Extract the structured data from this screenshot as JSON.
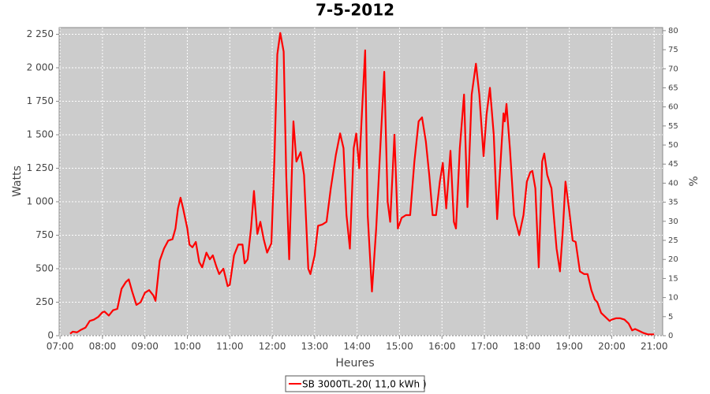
{
  "chart_data": {
    "type": "line",
    "title": "7-5-2012",
    "x_label": "Heures",
    "y_label": "Watts",
    "y2_label": "%",
    "x": [
      7.24,
      7.3,
      7.4,
      7.5,
      7.6,
      7.7,
      7.8,
      7.9,
      8.0,
      8.05,
      8.15,
      8.25,
      8.35,
      8.45,
      8.55,
      8.62,
      8.7,
      8.8,
      8.9,
      9.0,
      9.1,
      9.2,
      9.25,
      9.35,
      9.45,
      9.55,
      9.65,
      9.72,
      9.78,
      9.84,
      9.9,
      10.0,
      10.05,
      10.12,
      10.2,
      10.28,
      10.35,
      10.45,
      10.53,
      10.6,
      10.68,
      10.75,
      10.85,
      10.95,
      11.0,
      11.1,
      11.2,
      11.3,
      11.35,
      11.42,
      11.5,
      11.57,
      11.65,
      11.72,
      11.8,
      11.88,
      11.98,
      12.05,
      12.12,
      12.19,
      12.27,
      12.33,
      12.4,
      12.5,
      12.57,
      12.67,
      12.75,
      12.85,
      12.9,
      13.0,
      13.08,
      13.18,
      13.28,
      13.38,
      13.5,
      13.6,
      13.68,
      13.75,
      13.83,
      13.92,
      13.98,
      14.05,
      14.12,
      14.19,
      14.25,
      14.35,
      14.45,
      14.53,
      14.64,
      14.72,
      14.78,
      14.88,
      14.96,
      15.05,
      15.15,
      15.25,
      15.35,
      15.45,
      15.53,
      15.62,
      15.7,
      15.78,
      15.86,
      15.95,
      16.02,
      16.1,
      16.2,
      16.28,
      16.33,
      16.42,
      16.52,
      16.6,
      16.7,
      16.8,
      16.88,
      16.98,
      17.05,
      17.13,
      17.22,
      17.3,
      17.4,
      17.45,
      17.48,
      17.52,
      17.6,
      17.7,
      17.82,
      17.92,
      18.0,
      18.08,
      18.13,
      18.2,
      18.28,
      18.36,
      18.41,
      18.48,
      18.58,
      18.7,
      18.78,
      18.85,
      18.91,
      19.0,
      19.08,
      19.15,
      19.25,
      19.35,
      19.43,
      19.52,
      19.6,
      19.66,
      19.75,
      19.85,
      19.95,
      20.0,
      20.1,
      20.2,
      20.3,
      20.4,
      20.48,
      20.55,
      20.62,
      20.75,
      20.85,
      21.0
    ],
    "series": [
      {
        "name": "SB 3000TL-20( 11,0 kWh )",
        "color": "#ff0000",
        "values": [
          15,
          30,
          25,
          45,
          60,
          110,
          120,
          140,
          175,
          180,
          150,
          190,
          200,
          350,
          400,
          420,
          330,
          230,
          250,
          320,
          340,
          300,
          260,
          560,
          650,
          710,
          720,
          800,
          950,
          1030,
          950,
          800,
          680,
          660,
          700,
          550,
          510,
          620,
          570,
          600,
          520,
          460,
          500,
          370,
          380,
          600,
          680,
          680,
          540,
          570,
          800,
          1080,
          760,
          850,
          720,
          620,
          690,
          1300,
          2100,
          2260,
          2120,
          1200,
          570,
          1600,
          1300,
          1370,
          1200,
          500,
          460,
          600,
          820,
          830,
          850,
          1100,
          1350,
          1510,
          1400,
          900,
          650,
          1400,
          1510,
          1250,
          1700,
          2130,
          900,
          330,
          800,
          1300,
          1970,
          1000,
          850,
          1500,
          800,
          880,
          900,
          900,
          1300,
          1600,
          1630,
          1450,
          1200,
          900,
          900,
          1150,
          1290,
          950,
          1380,
          850,
          800,
          1400,
          1800,
          960,
          1800,
          2030,
          1800,
          1340,
          1650,
          1850,
          1500,
          870,
          1400,
          1660,
          1600,
          1730,
          1400,
          900,
          750,
          900,
          1150,
          1220,
          1230,
          1100,
          510,
          1300,
          1360,
          1200,
          1100,
          650,
          480,
          800,
          1150,
          930,
          710,
          700,
          480,
          460,
          460,
          340,
          270,
          250,
          170,
          140,
          110,
          120,
          130,
          130,
          120,
          90,
          40,
          50,
          40,
          20,
          10,
          10
        ]
      }
    ],
    "xlim": [
      6.98,
      21.2
    ],
    "xticks": [
      {
        "value": 7,
        "label": "07:00"
      },
      {
        "value": 8,
        "label": "08:00"
      },
      {
        "value": 9,
        "label": "09:00"
      },
      {
        "value": 10,
        "label": "10:00"
      },
      {
        "value": 11,
        "label": "11:00"
      },
      {
        "value": 12,
        "label": "12:00"
      },
      {
        "value": 13,
        "label": "13:00"
      },
      {
        "value": 14,
        "label": "14:00"
      },
      {
        "value": 15,
        "label": "15:00"
      },
      {
        "value": 16,
        "label": "16:00"
      },
      {
        "value": 17,
        "label": "17:00"
      },
      {
        "value": 18,
        "label": "18:00"
      },
      {
        "value": 19,
        "label": "19:00"
      },
      {
        "value": 20,
        "label": "20:00"
      },
      {
        "value": 21,
        "label": "21:00"
      }
    ],
    "ylim": [
      0,
      2300
    ],
    "yticks": [
      0,
      250,
      500,
      750,
      {
        "value": 1000,
        "label": "1 000"
      },
      {
        "value": 1250,
        "label": "1 250"
      },
      {
        "value": 1500,
        "label": "1 500"
      },
      {
        "value": 1750,
        "label": "1 750"
      },
      {
        "value": 2000,
        "label": "2 000"
      },
      {
        "value": 2250,
        "label": "2 250"
      }
    ],
    "y2lim": [
      0,
      80.8
    ],
    "y2ticks": [
      0,
      5,
      10,
      15,
      20,
      25,
      30,
      35,
      40,
      45,
      50,
      55,
      60,
      65,
      70,
      75,
      80
    ],
    "grid": true,
    "legend": "bottom"
  }
}
